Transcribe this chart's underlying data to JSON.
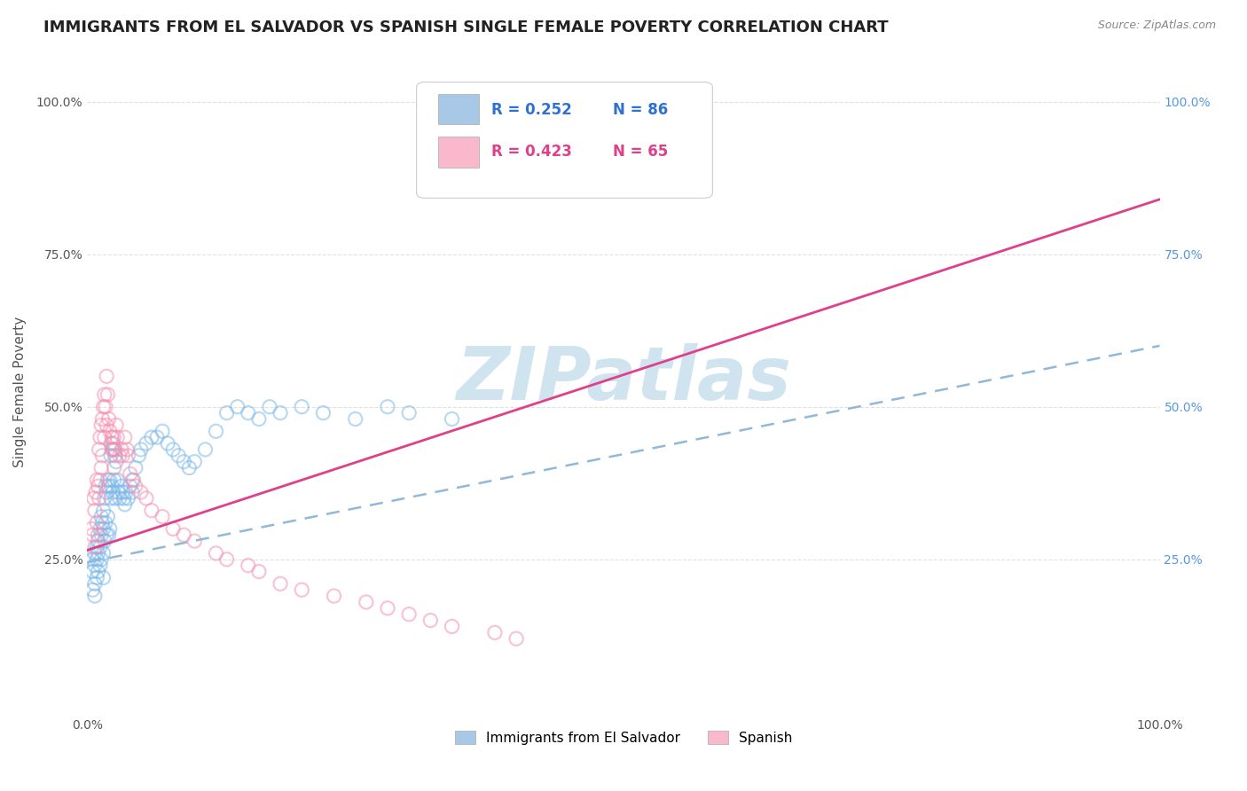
{
  "title": "IMMIGRANTS FROM EL SALVADOR VS SPANISH SINGLE FEMALE POVERTY CORRELATION CHART",
  "source": "Source: ZipAtlas.com",
  "ylabel": "Single Female Poverty",
  "xlim": [
    0.0,
    1.0
  ],
  "ylim": [
    0.0,
    1.05
  ],
  "xtick_positions": [
    0.0,
    0.1,
    0.2,
    0.3,
    0.4,
    0.5,
    1.0
  ],
  "xtick_labels_show": [
    "0.0%",
    "",
    "",
    "",
    "",
    "",
    "100.0%"
  ],
  "ytick_positions": [
    0.25,
    0.5,
    0.75,
    1.0
  ],
  "ytick_labels": [
    "25.0%",
    "50.0%",
    "75.0%",
    "100.0%"
  ],
  "legend": {
    "series1_label": "Immigrants from El Salvador",
    "series1_color": "#a8c8e8",
    "series1_R": "R = 0.252",
    "series1_N": "N = 86",
    "series2_label": "Spanish",
    "series2_color": "#f9b8cb",
    "series2_R": "R = 0.423",
    "series2_N": "N = 65"
  },
  "watermark": "ZIPatlas",
  "blue_scatter_x": [
    0.005,
    0.005,
    0.005,
    0.007,
    0.007,
    0.007,
    0.007,
    0.009,
    0.009,
    0.009,
    0.01,
    0.01,
    0.01,
    0.012,
    0.012,
    0.012,
    0.013,
    0.013,
    0.013,
    0.014,
    0.015,
    0.015,
    0.015,
    0.015,
    0.016,
    0.016,
    0.017,
    0.017,
    0.018,
    0.018,
    0.019,
    0.019,
    0.02,
    0.02,
    0.021,
    0.021,
    0.022,
    0.022,
    0.023,
    0.023,
    0.024,
    0.024,
    0.025,
    0.025,
    0.026,
    0.026,
    0.027,
    0.028,
    0.029,
    0.03,
    0.032,
    0.033,
    0.034,
    0.035,
    0.036,
    0.038,
    0.04,
    0.042,
    0.043,
    0.045,
    0.048,
    0.05,
    0.055,
    0.06,
    0.065,
    0.07,
    0.075,
    0.08,
    0.085,
    0.09,
    0.095,
    0.1,
    0.11,
    0.12,
    0.13,
    0.14,
    0.15,
    0.16,
    0.17,
    0.18,
    0.2,
    0.22,
    0.25,
    0.28,
    0.3,
    0.34
  ],
  "blue_scatter_y": [
    0.25,
    0.23,
    0.2,
    0.26,
    0.24,
    0.21,
    0.19,
    0.27,
    0.25,
    0.22,
    0.28,
    0.26,
    0.23,
    0.3,
    0.27,
    0.24,
    0.32,
    0.29,
    0.25,
    0.31,
    0.33,
    0.3,
    0.26,
    0.22,
    0.35,
    0.28,
    0.37,
    0.31,
    0.36,
    0.29,
    0.38,
    0.32,
    0.37,
    0.29,
    0.38,
    0.3,
    0.42,
    0.35,
    0.43,
    0.37,
    0.44,
    0.36,
    0.43,
    0.38,
    0.42,
    0.35,
    0.41,
    0.38,
    0.36,
    0.35,
    0.37,
    0.36,
    0.35,
    0.34,
    0.36,
    0.35,
    0.37,
    0.36,
    0.38,
    0.4,
    0.42,
    0.43,
    0.44,
    0.45,
    0.45,
    0.46,
    0.44,
    0.43,
    0.42,
    0.41,
    0.4,
    0.41,
    0.43,
    0.46,
    0.49,
    0.5,
    0.49,
    0.48,
    0.5,
    0.49,
    0.5,
    0.49,
    0.48,
    0.5,
    0.49,
    0.48
  ],
  "pink_scatter_x": [
    0.004,
    0.005,
    0.006,
    0.007,
    0.007,
    0.008,
    0.009,
    0.009,
    0.01,
    0.01,
    0.011,
    0.011,
    0.012,
    0.012,
    0.013,
    0.013,
    0.014,
    0.014,
    0.015,
    0.016,
    0.016,
    0.017,
    0.018,
    0.018,
    0.019,
    0.02,
    0.021,
    0.022,
    0.023,
    0.024,
    0.025,
    0.025,
    0.026,
    0.027,
    0.028,
    0.03,
    0.032,
    0.033,
    0.035,
    0.037,
    0.038,
    0.04,
    0.042,
    0.045,
    0.05,
    0.055,
    0.06,
    0.07,
    0.08,
    0.09,
    0.1,
    0.12,
    0.13,
    0.15,
    0.16,
    0.18,
    0.2,
    0.23,
    0.26,
    0.28,
    0.3,
    0.32,
    0.34,
    0.38,
    0.4
  ],
  "pink_scatter_y": [
    0.3,
    0.29,
    0.35,
    0.33,
    0.27,
    0.36,
    0.38,
    0.31,
    0.37,
    0.29,
    0.43,
    0.35,
    0.45,
    0.38,
    0.47,
    0.4,
    0.48,
    0.42,
    0.5,
    0.52,
    0.45,
    0.5,
    0.55,
    0.47,
    0.52,
    0.48,
    0.46,
    0.44,
    0.45,
    0.43,
    0.45,
    0.4,
    0.43,
    0.47,
    0.45,
    0.42,
    0.43,
    0.42,
    0.45,
    0.43,
    0.42,
    0.39,
    0.38,
    0.37,
    0.36,
    0.35,
    0.33,
    0.32,
    0.3,
    0.29,
    0.28,
    0.26,
    0.25,
    0.24,
    0.23,
    0.21,
    0.2,
    0.19,
    0.18,
    0.17,
    0.16,
    0.15,
    0.14,
    0.13,
    0.12
  ],
  "blue_line_x": [
    0.0,
    1.0
  ],
  "blue_line_y": [
    0.245,
    0.6
  ],
  "pink_line_x": [
    0.0,
    1.0
  ],
  "pink_line_y": [
    0.265,
    0.84
  ],
  "grid_color": "#e0e0e0",
  "scatter_alpha": 0.55,
  "scatter_size": 120,
  "blue_color": "#7db8e8",
  "pink_color": "#f590b0",
  "blue_line_color": "#2060c0",
  "pink_line_color": "#e0408a",
  "blue_dashed_line_color": "#90b8d8",
  "legend_R_color": "#3070d0",
  "legend_R2_color": "#e0408a",
  "title_fontsize": 13,
  "axis_label_fontsize": 11,
  "tick_fontsize": 10,
  "watermark_color": "#d0e4f0",
  "watermark_fontsize": 60
}
